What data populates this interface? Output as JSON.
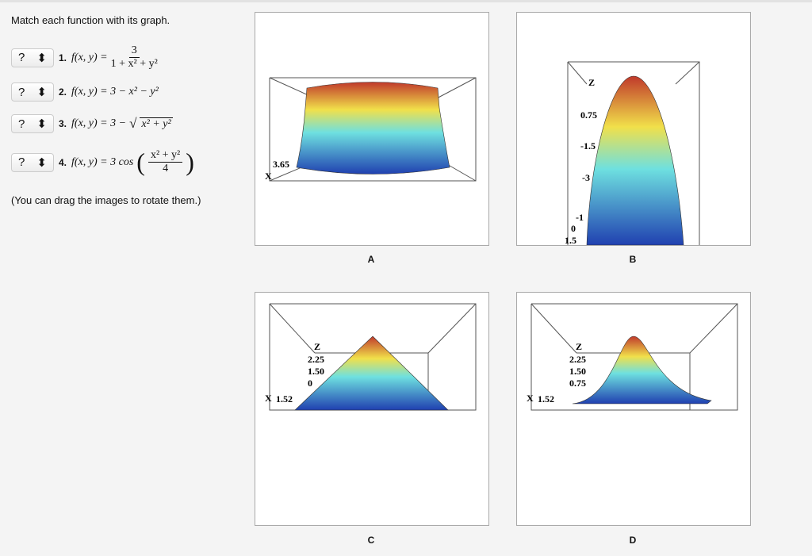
{
  "instruction": "Match each function with its graph.",
  "items": [
    {
      "answer": "?",
      "number": "1.",
      "lhs": "f(x, y) =",
      "numerator": "3",
      "denominator": "1 + x² + y²"
    },
    {
      "answer": "?",
      "number": "2.",
      "formula": "f(x, y) = 3 − x² − y²"
    },
    {
      "answer": "?",
      "number": "3.",
      "lhs": "f(x, y) = 3 −",
      "radicand": "x² + y²"
    },
    {
      "answer": "?",
      "number": "4.",
      "lhs": "f(x, y) = 3 cos",
      "numerator": "x² + y²",
      "denominator": "4"
    }
  ],
  "note": "(You can drag the images to rotate them.)",
  "graphs": [
    {
      "label": "A",
      "axis_texts": [
        "3.65",
        "X"
      ]
    },
    {
      "label": "B",
      "axis_texts": [
        "Z",
        "0.75",
        "-1.5",
        "-3",
        "-1",
        "0",
        "1.5"
      ]
    },
    {
      "label": "C",
      "axis_texts": [
        "Z",
        "2.25",
        "1.50",
        "0",
        "X",
        "1.52"
      ]
    },
    {
      "label": "D",
      "axis_texts": [
        "Z",
        "2.25",
        "1.50",
        "0.75",
        "X",
        "1.52"
      ]
    }
  ]
}
